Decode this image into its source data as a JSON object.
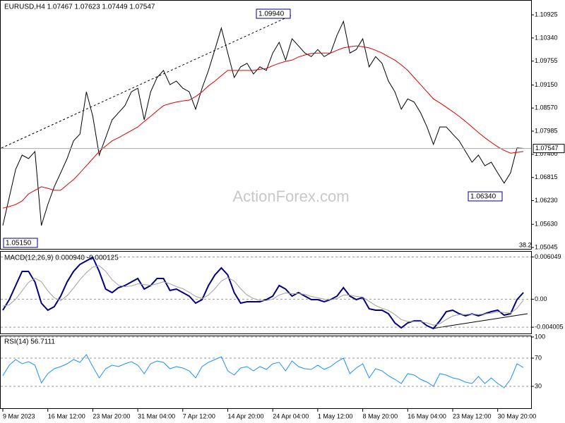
{
  "chart_data": [
    {
      "type": "line",
      "title": "EURUSD,H4 1.07467 1.07623 1.07449 1.07547",
      "watermark": "ActionForex.com",
      "ylim": [
        1.0501,
        1.113
      ],
      "yticks": [
        1.10925,
        {
          "value": 1.1034,
          "label": "1.10340"
        },
        1.09755,
        {
          "value": 1.0915,
          "label": "1.09150"
        },
        {
          "value": 1.0857,
          "label": "1.08570"
        },
        1.07985,
        {
          "value": 1.074,
          "label": "1.07400"
        },
        1.06815,
        {
          "value": 1.0623,
          "label": "1.06230"
        },
        {
          "value": 1.0563,
          "label": "1.05630"
        },
        1.05045
      ],
      "grid": false,
      "series": [
        {
          "color": "#000000",
          "values": [
            1.056,
            1.0631,
            1.0702,
            1.0738,
            1.0729,
            1.0747,
            1.056,
            1.0613,
            1.0658,
            1.0693,
            1.0729,
            1.0774,
            1.0791,
            1.0898,
            1.0836,
            1.0738,
            1.0782,
            1.0827,
            1.0845,
            1.0863,
            1.0898,
            1.0907,
            1.0827,
            1.0898,
            1.0934,
            1.0952,
            1.0916,
            1.0925,
            1.0907,
            1.0898,
            1.0854,
            1.0907,
            1.0952,
            1.1005,
            1.1059,
            1.0996,
            1.0934,
            1.0961,
            1.097,
            1.0943,
            1.0961,
            1.0952,
            1.0996,
            1.1023,
            1.0978,
            1.1032,
            1.1014,
            1.0996,
            1.0987,
            1.1005,
            1.0987,
            1.0996,
            1.1041,
            1.1076,
            1.0996,
            1.1005,
            1.1032,
            1.0961,
            1.0987,
            1.097,
            1.0925,
            1.0898,
            1.0854,
            1.088,
            1.0872,
            1.0845,
            1.0809,
            1.0765,
            1.0809,
            1.0809,
            1.0791,
            1.0774,
            1.0747,
            1.072,
            1.0738,
            1.0711,
            1.072,
            1.0693,
            1.0667,
            1.0693,
            1.0756,
            1.0755
          ]
        },
        {
          "color": "#e00000",
          "values": [
            1.0604,
            1.0608,
            1.0613,
            1.0622,
            1.064,
            1.0649,
            1.0658,
            1.0654,
            1.0649,
            1.0649,
            1.0663,
            1.0676,
            1.0693,
            1.0711,
            1.0729,
            1.0747,
            1.0761,
            1.0774,
            1.0782,
            1.0791,
            1.08,
            1.0809,
            1.0823,
            1.0836,
            1.085,
            1.0863,
            1.0868,
            1.0872,
            1.0875,
            1.0877,
            1.0886,
            1.0898,
            1.0913,
            1.0925,
            1.0939,
            1.0952,
            1.0952,
            1.0952,
            1.0952,
            1.0952,
            1.0955,
            1.0957,
            1.0964,
            1.097,
            1.0975,
            1.0978,
            1.0986,
            1.0991,
            1.0995,
            1.0996,
            1.0996,
            1.0996,
            1.1003,
            1.1009,
            1.1012,
            1.1014,
            1.1012,
            1.1009,
            1.1003,
            1.0996,
            1.0987,
            1.0978,
            1.0966,
            1.0952,
            1.0934,
            1.0916,
            1.0898,
            1.088,
            1.087,
            1.0859,
            1.0848,
            1.0836,
            1.0823,
            1.0809,
            1.0795,
            1.0782,
            1.077,
            1.0759,
            1.075,
            1.0743,
            1.0745,
            1.0747
          ]
        }
      ],
      "price_labels": [
        {
          "value": 1.0994,
          "label": "1.09940"
        },
        {
          "value": 1.0634,
          "label": "1.06340"
        },
        {
          "value": 1.0515,
          "label": "1.05150"
        }
      ],
      "current_price": {
        "value": 1.07547,
        "label": "1.07547"
      },
      "fib_label": "38.2"
    },
    {
      "type": "line",
      "title": "MACD(12,26,9) 0.000940 -0.000125",
      "ylim": [
        -0.0049,
        0.0068
      ],
      "yticks": [
        0.006049,
        {
          "value": 0,
          "label": "0.00"
        },
        -0.004005
      ],
      "grid": true,
      "series": [
        {
          "color": "#000080",
          "values": [
            -0.00157,
            -6e-05,
            0.00196,
            0.00398,
            0.00398,
            0.00246,
            -0.00056,
            -0.00157,
            -0.00107,
            0.00045,
            0.00246,
            0.00398,
            0.00498,
            0.00549,
            0.00599,
            0.00398,
            0.00145,
            0.00095,
            0.00166,
            0.00196,
            0.00246,
            0.00297,
            0.00145,
            0.00196,
            0.00297,
            0.00297,
            0.00125,
            0.00145,
            0.00095,
            0.00045,
            -0.00056,
            -6e-05,
            0.00196,
            0.00347,
            0.00448,
            0.00347,
            0.00095,
            -0.00056,
            -0.00036,
            -0.00036,
            -0.00036,
            -6e-05,
            0.00045,
            0.00196,
            0.00145,
            0.00045,
            0.00095,
            0.00045,
            -6e-05,
            -6e-05,
            -0.00036,
            -6e-05,
            0.00045,
            0.00166,
            0.00045,
            -6e-05,
            0.00024,
            -0.00137,
            -0.00157,
            -0.00157,
            -0.00208,
            -0.00339,
            -0.00409,
            -0.00339,
            -0.00309,
            -0.00309,
            -0.00379,
            -0.00419,
            -0.00309,
            -0.00177,
            -0.00157,
            -0.00208,
            -0.00238,
            -0.00208,
            -0.00238,
            -0.00208,
            -0.00177,
            -0.00157,
            -0.00228,
            -0.00208,
            -6e-05,
            0.00095
          ]
        },
        {
          "color": "#a0a0a0",
          "values": [
            -0.001,
            -0.0008,
            0.0,
            0.0012,
            0.0024,
            0.003,
            0.0025,
            0.0012,
            0.0002,
            -0.0002,
            0.0005,
            0.0016,
            0.0028,
            0.0038,
            0.0046,
            0.0048,
            0.004,
            0.0028,
            0.002,
            0.0018,
            0.0019,
            0.0022,
            0.0021,
            0.002,
            0.0022,
            0.0025,
            0.0022,
            0.0018,
            0.0015,
            0.001,
            0.0004,
            0.0001,
            0.0006,
            0.0015,
            0.0026,
            0.0031,
            0.0026,
            0.0015,
            0.0006,
            0.0001,
            -0.0002,
            -0.0002,
            0.0,
            0.0006,
            0.0009,
            0.0008,
            0.0008,
            0.0007,
            0.0004,
            0.0002,
            0.0,
            -0.0001,
            0.0001,
            0.0006,
            0.0006,
            0.0004,
            0.0003,
            -0.0003,
            -0.0009,
            -0.0013,
            -0.0016,
            -0.0022,
            -0.0029,
            -0.0032,
            -0.0032,
            -0.0032,
            -0.0034,
            -0.0037,
            -0.0035,
            -0.0029,
            -0.0024,
            -0.0022,
            -0.0022,
            -0.0021,
            -0.0022,
            -0.0021,
            -0.002,
            -0.0018,
            -0.0019,
            -0.002,
            -0.0013,
            -0.000125
          ]
        }
      ]
    },
    {
      "type": "line",
      "title": "RSI(14) 56.7111",
      "ylim": [
        0,
        100
      ],
      "yticks": [
        100,
        70,
        30
      ],
      "grid": true,
      "categories": [
        "9 Mar 2023",
        null,
        null,
        null,
        null,
        null,
        null,
        "16 Mar 12:00",
        null,
        null,
        null,
        null,
        null,
        null,
        "23 Mar 20:00",
        null,
        null,
        null,
        null,
        null,
        null,
        "31 Mar 04:00",
        null,
        null,
        null,
        null,
        null,
        null,
        "7 Apr 12:00",
        null,
        null,
        null,
        null,
        null,
        null,
        "14 Apr 20:00",
        null,
        null,
        null,
        null,
        null,
        null,
        "24 Apr 04:00",
        null,
        null,
        null,
        null,
        null,
        null,
        "1 May 12:00",
        null,
        null,
        null,
        null,
        null,
        null,
        "8 May 20:00",
        null,
        null,
        null,
        null,
        null,
        null,
        "16 May 04:00",
        null,
        null,
        null,
        null,
        null,
        null,
        "23 May 12:00",
        null,
        null,
        null,
        null,
        null,
        null,
        "30 May 20:00",
        null,
        null,
        null,
        null
      ],
      "series": [
        {
          "color": "#1e90ff",
          "values": [
            45,
            60,
            68,
            62,
            65,
            60,
            35,
            48,
            55,
            58,
            62,
            68,
            64,
            75,
            58,
            42,
            55,
            60,
            58,
            62,
            65,
            60,
            48,
            62,
            66,
            64,
            55,
            58,
            56,
            52,
            42,
            58,
            64,
            68,
            72,
            52,
            46,
            56,
            58,
            52,
            58,
            54,
            62,
            64,
            52,
            66,
            58,
            55,
            54,
            60,
            54,
            58,
            65,
            70,
            48,
            56,
            62,
            42,
            55,
            52,
            45,
            40,
            34,
            48,
            46,
            40,
            36,
            30,
            48,
            46,
            42,
            40,
            36,
            34,
            44,
            34,
            42,
            34,
            28,
            40,
            62,
            56.7111
          ]
        }
      ]
    }
  ]
}
